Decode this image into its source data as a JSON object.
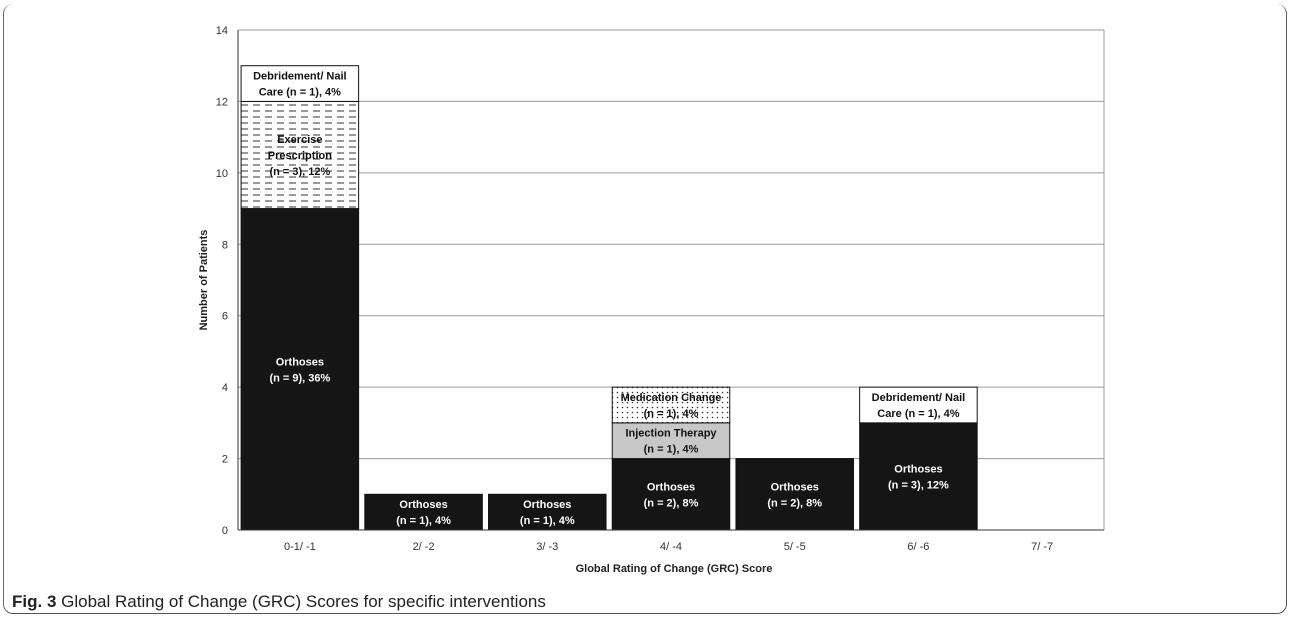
{
  "chart_data": {
    "type": "bar",
    "stacked": true,
    "xlabel": "Global Rating of Change (GRC) Score",
    "ylabel": "Number of Patients",
    "ylim": [
      0,
      14
    ],
    "yticks": [
      0,
      2,
      4,
      6,
      8,
      10,
      12,
      14
    ],
    "grid": true,
    "categories": [
      "0-1/ -1",
      "2/ -2",
      "3/ -3",
      "4/ -4",
      "5/ -5",
      "6/ -6",
      "7/ -7"
    ],
    "stacks": [
      {
        "category": "0-1/ -1",
        "segments": [
          {
            "value": 9,
            "style": "solid",
            "label": [
              "Orthoses",
              "(n = 9), 36%"
            ]
          },
          {
            "value": 3,
            "style": "dashed",
            "label": [
              "Exercise",
              "Prescription",
              "(n = 3), 12%"
            ]
          },
          {
            "value": 1,
            "style": "white",
            "label": [
              "Debridement/ Nail",
              "Care (n = 1), 4%"
            ]
          }
        ]
      },
      {
        "category": "2/ -2",
        "segments": [
          {
            "value": 1,
            "style": "solid",
            "label": [
              "Orthoses",
              "(n = 1), 4%"
            ]
          }
        ]
      },
      {
        "category": "3/ -3",
        "segments": [
          {
            "value": 1,
            "style": "solid",
            "label": [
              "Orthoses",
              "(n = 1), 4%"
            ]
          }
        ]
      },
      {
        "category": "4/ -4",
        "segments": [
          {
            "value": 2,
            "style": "solid",
            "label": [
              "Orthoses",
              "(n = 2), 8%"
            ]
          },
          {
            "value": 1,
            "style": "gray",
            "label": [
              "Injection Therapy",
              "(n = 1), 4%"
            ]
          },
          {
            "value": 1,
            "style": "dotted",
            "label": [
              "Medication Change",
              "(n = 1), 4%"
            ]
          }
        ]
      },
      {
        "category": "5/ -5",
        "segments": [
          {
            "value": 2,
            "style": "solid",
            "label": [
              "Orthoses",
              "(n = 2), 8%"
            ]
          }
        ]
      },
      {
        "category": "6/ -6",
        "segments": [
          {
            "value": 3,
            "style": "solid",
            "label": [
              "Orthoses",
              "(n = 3), 12%"
            ]
          },
          {
            "value": 1,
            "style": "white",
            "label": [
              "Debridement/ Nail",
              "Care (n = 1), 4%"
            ]
          }
        ]
      },
      {
        "category": "7/ -7",
        "segments": []
      }
    ]
  },
  "caption": {
    "label": "Fig. 3",
    "text": "Global Rating of Change (GRC) Scores for specific interventions"
  },
  "colors": {
    "solid": "#151515",
    "gray": "#c8c8c8",
    "white": "#ffffff",
    "grid": "#9a9a9a",
    "axis": "#333333"
  }
}
